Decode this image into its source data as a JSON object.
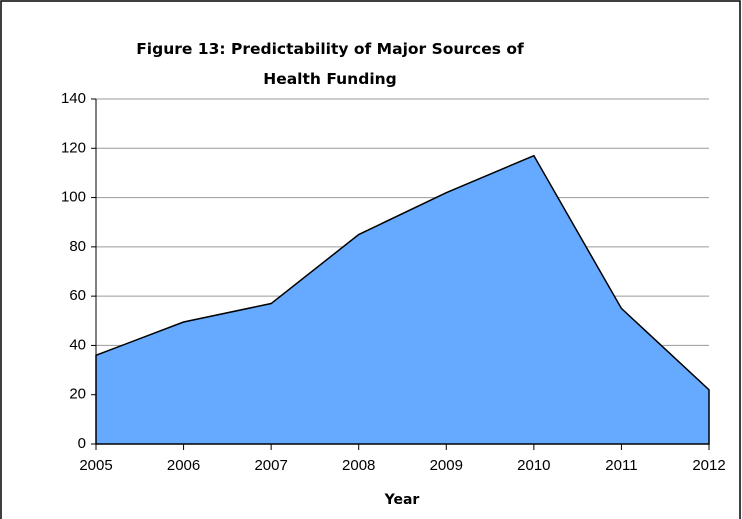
{
  "chart_data": {
    "type": "area",
    "title": "Figure 13: Predictability of Major Sources of Health Funding",
    "x_label": "Year",
    "x": [
      2005,
      2006,
      2007,
      2008,
      2009,
      2010,
      2011,
      2012
    ],
    "values": [
      36,
      49.5,
      57,
      85,
      102,
      117,
      55,
      22
    ],
    "color": "#66aaff",
    "xlim": [
      2005,
      2012
    ],
    "xticks": [
      2005,
      2006,
      2007,
      2008,
      2009,
      2010,
      2011,
      2012
    ],
    "ylim": [
      0,
      140
    ],
    "yticks": [
      0,
      20,
      40,
      60,
      80,
      100,
      120,
      140
    ],
    "grid": true
  }
}
